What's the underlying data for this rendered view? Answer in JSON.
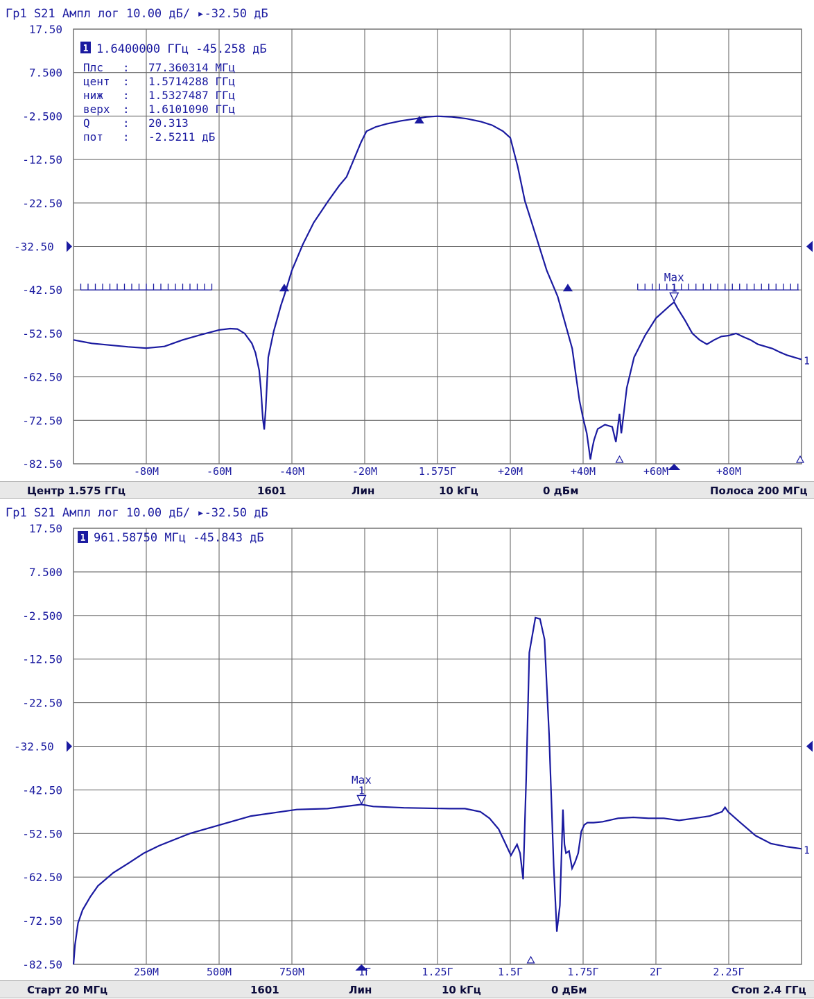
{
  "colors": {
    "trace": "#1a1aa0",
    "grid": "#6a6a6a",
    "label": "#1a1aa0",
    "status_bg": "#e8e8e8"
  },
  "panels": [
    {
      "header": "Гр1  S21  Ампл лог  10.00 дБ/  ▸-32.50 дБ",
      "y_ticks": [
        "17.50",
        "7.500",
        "-2.500",
        "-12.50",
        "-22.50",
        "-32.50",
        "-42.50",
        "-52.50",
        "-62.50",
        "-72.50",
        "-82.50"
      ],
      "ref_tick": "-32.50",
      "x_ticks": [
        "-80M",
        "-60M",
        "-40M",
        "-20M",
        "1.575Г",
        "+20M",
        "+40M",
        "+60M",
        "+80M"
      ],
      "marker": {
        "badge": "1",
        "readout": "1.6400000 ГГц -45.258 дБ",
        "label": "Max",
        "num": "1",
        "trace_end_label": "1"
      },
      "bandwidth_table": [
        {
          "key": "Плс",
          "value": "77.360314 МГц"
        },
        {
          "key": "цент",
          "value": "1.5714288 ГГц"
        },
        {
          "key": "ниж",
          "value": "1.5327487 ГГц"
        },
        {
          "key": "верх",
          "value": "1.6101090 ГГц"
        },
        {
          "key": "Q",
          "value": "20.313"
        },
        {
          "key": "пот",
          "value": "-2.5211 дБ"
        }
      ],
      "status": [
        "Центр 1.575 ГГц",
        "1601",
        "Лин",
        "10 kГц",
        "0 дБм",
        "Полоса 200 МГц"
      ]
    },
    {
      "header": "Гр1  S21  Ампл лог  10.00 дБ/  ▸-32.50 дБ",
      "y_ticks": [
        "17.50",
        "7.500",
        "-2.500",
        "-12.50",
        "-22.50",
        "-32.50",
        "-42.50",
        "-52.50",
        "-62.50",
        "-72.50",
        "-82.50"
      ],
      "ref_tick": "-32.50",
      "x_ticks": [
        "250M",
        "500M",
        "750M",
        "1Г",
        "1.25Г",
        "1.5Г",
        "1.75Г",
        "2Г",
        "2.25Г"
      ],
      "marker": {
        "badge": "1",
        "readout": "961.58750 МГц -45.843 дБ",
        "label": "Max",
        "num": "1",
        "trace_end_label": "1"
      },
      "status": [
        "Старт 20 МГц",
        "1601",
        "Лин",
        "10 kГц",
        "0 дБм",
        "Стоп 2.4 ГГц"
      ]
    }
  ],
  "chart_data": [
    {
      "type": "line",
      "title": "Гр1  S21  Ампл лог  10.00 дБ/  ▸-32.50 дБ",
      "x_unit": "MHz offset from 1.575 GHz",
      "xlim": [
        -100,
        100
      ],
      "ylim": [
        -82.5,
        17.5
      ],
      "grid": true,
      "series": [
        {
          "x": [
            -100,
            -95,
            -90,
            -85,
            -80,
            -75,
            -70,
            -65,
            -60,
            -57,
            -55,
            -53,
            -51,
            -50,
            -49,
            -48.5,
            -48,
            -47.6,
            -47.2,
            -46.5,
            -45,
            -43,
            -42,
            -40,
            -37,
            -34,
            -30,
            -27,
            -25,
            -23,
            -21,
            -19.5,
            -17,
            -14,
            -10,
            -6,
            -3,
            0,
            4,
            8,
            12,
            15,
            18,
            20,
            22,
            24,
            27,
            30,
            33,
            35,
            37,
            38,
            39,
            40,
            41,
            41.5,
            42,
            42.5,
            43,
            44,
            46,
            48,
            49,
            50,
            50.5,
            51,
            52,
            54,
            57,
            60,
            62,
            64,
            65,
            66,
            68,
            70,
            72,
            74,
            76,
            78,
            80,
            82,
            84,
            86,
            88,
            90,
            92,
            94,
            96,
            98,
            100
          ],
          "y": [
            -54.0,
            -54.8,
            -55.2,
            -55.6,
            -55.9,
            -55.5,
            -54.0,
            -52.8,
            -51.7,
            -51.4,
            -51.5,
            -52.5,
            -54.8,
            -57.0,
            -61.0,
            -65.5,
            -72.0,
            -74.6,
            -70.0,
            -58.0,
            -52.0,
            -46.0,
            -43.5,
            -38.0,
            -32.0,
            -27.0,
            -22.0,
            -18.5,
            -16.5,
            -12.5,
            -8.5,
            -6.0,
            -5.0,
            -4.3,
            -3.6,
            -3.1,
            -2.7,
            -2.55,
            -2.7,
            -3.1,
            -3.8,
            -4.6,
            -6.0,
            -7.5,
            -14.0,
            -22.0,
            -30.0,
            -38.0,
            -44.0,
            -50.0,
            -56.0,
            -62.0,
            -68.0,
            -72.0,
            -75.5,
            -78.5,
            -81.5,
            -79.0,
            -77.0,
            -74.5,
            -73.5,
            -74.0,
            -77.5,
            -71.0,
            -75.5,
            -72.0,
            -65.0,
            -58.0,
            -53.0,
            -49.0,
            -47.5,
            -46.0,
            -45.3,
            -46.8,
            -49.5,
            -52.5,
            -54.0,
            -55.0,
            -54.0,
            -53.2,
            -53.0,
            -52.5,
            -53.3,
            -54.0,
            -55.0,
            -55.5,
            -56.0,
            -56.8,
            -57.5,
            -58.0,
            -58.5
          ]
        }
      ],
      "markers": [
        {
          "id": "1",
          "x_label": "1.6400000 ГГц",
          "value_db": -45.258,
          "x": 65,
          "y": -45.258,
          "label": "Max"
        }
      ],
      "bandwidth_points_db": -42.5
    },
    {
      "type": "line",
      "title": "Гр1  S21  Ампл лог  10.00 дБ/  ▸-32.50 дБ",
      "x_unit": "MHz",
      "xlim": [
        20,
        2400
      ],
      "ylim": [
        -82.5,
        17.5
      ],
      "grid": true,
      "series": [
        {
          "x": [
            20,
            25,
            35,
            50,
            75,
            100,
            150,
            200,
            250,
            300,
            400,
            500,
            600,
            750,
            850,
            961,
            1000,
            1100,
            1250,
            1300,
            1350,
            1380,
            1410,
            1430,
            1450,
            1470,
            1480,
            1490,
            1500,
            1510,
            1530,
            1545,
            1560,
            1575,
            1590,
            1600,
            1610,
            1615,
            1620,
            1625,
            1630,
            1640,
            1650,
            1660,
            1670,
            1680,
            1690,
            1700,
            1720,
            1750,
            1800,
            1850,
            1900,
            1950,
            2000,
            2050,
            2100,
            2140,
            2150,
            2160,
            2200,
            2250,
            2300,
            2350,
            2400
          ],
          "y": [
            -82.5,
            -78.0,
            -73.0,
            -70.0,
            -67.0,
            -64.5,
            -61.5,
            -59.3,
            -57.0,
            -55.3,
            -52.5,
            -50.5,
            -48.5,
            -47.0,
            -46.8,
            -45.843,
            -46.3,
            -46.6,
            -46.8,
            -46.8,
            -47.5,
            -49.0,
            -51.5,
            -54.5,
            -57.5,
            -55.0,
            -57.0,
            -63.0,
            -40.0,
            -11.0,
            -3.0,
            -3.3,
            -8.0,
            -30.0,
            -60.0,
            -75.0,
            -69.0,
            -58.0,
            -47.0,
            -55.0,
            -57.0,
            -56.5,
            -60.5,
            -59.0,
            -57.0,
            -52.0,
            -50.5,
            -50.0,
            -50.0,
            -49.8,
            -49.0,
            -48.8,
            -49.0,
            -49.0,
            -49.5,
            -49.0,
            -48.5,
            -47.5,
            -46.5,
            -47.5,
            -50.0,
            -53.0,
            -54.8,
            -55.5,
            -56.0
          ]
        }
      ],
      "markers": [
        {
          "id": "1",
          "x_label": "961.58750 МГц",
          "value_db": -45.843,
          "x": 961.5875,
          "y": -45.843,
          "label": "Max"
        }
      ]
    }
  ]
}
